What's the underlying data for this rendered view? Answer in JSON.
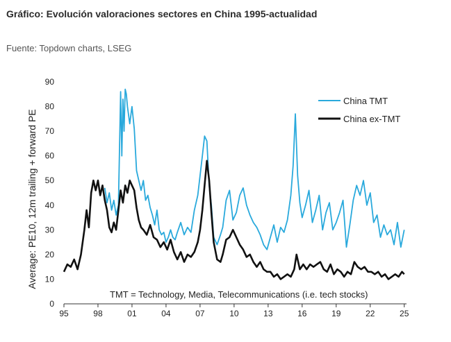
{
  "header": {
    "title": "Gráfico: Evolución valoraciones sectores en China 1995-actualidad",
    "source": "Fuente: Topdown charts, LSEG"
  },
  "chart_data": {
    "type": "line",
    "ylabel": "Average: PE10, 12m trailing + forward PE",
    "ylim": [
      0,
      90
    ],
    "yticks": [
      "0",
      "10",
      "20",
      "30",
      "40",
      "50",
      "60",
      "70",
      "80",
      "90"
    ],
    "xlim": [
      1995,
      2025.2
    ],
    "xticks": [
      {
        "label": "95",
        "x": 1995
      },
      {
        "label": "98",
        "x": 1998
      },
      {
        "label": "01",
        "x": 2001
      },
      {
        "label": "04",
        "x": 2004
      },
      {
        "label": "07",
        "x": 2007
      },
      {
        "label": "10",
        "x": 2010
      },
      {
        "label": "13",
        "x": 2013
      },
      {
        "label": "16",
        "x": 2016
      },
      {
        "label": "19",
        "x": 2019
      },
      {
        "label": "22",
        "x": 2022
      },
      {
        "label": "25",
        "x": 2025
      }
    ],
    "legend_position": "top-right",
    "annotation": "TMT = Technology, Media, Telecommunications  (i.e. tech stocks)",
    "colors": {
      "china_tmt": "#29a9dc",
      "china_ex_tmt": "#111111"
    },
    "series": [
      {
        "name": "China TMT",
        "color": "#29a9dc",
        "x": [
          1998.6,
          1998.8,
          1999.0,
          1999.2,
          1999.4,
          1999.6,
          1999.8,
          2000.0,
          2000.1,
          2000.2,
          2000.3,
          2000.4,
          2000.5,
          2000.6,
          2000.8,
          2001.0,
          2001.2,
          2001.4,
          2001.6,
          2001.8,
          2002.0,
          2002.2,
          2002.4,
          2002.6,
          2002.8,
          2003.0,
          2003.2,
          2003.4,
          2003.6,
          2003.8,
          2004.0,
          2004.2,
          2004.4,
          2004.6,
          2004.8,
          2005.0,
          2005.3,
          2005.6,
          2005.9,
          2006.2,
          2006.5,
          2006.8,
          2007.0,
          2007.2,
          2007.4,
          2007.6,
          2007.8,
          2008.0,
          2008.2,
          2008.5,
          2008.8,
          2009.0,
          2009.3,
          2009.6,
          2009.9,
          2010.2,
          2010.5,
          2010.8,
          2011.1,
          2011.4,
          2011.7,
          2012.0,
          2012.3,
          2012.6,
          2012.9,
          2013.2,
          2013.5,
          2013.8,
          2014.1,
          2014.4,
          2014.7,
          2015.0,
          2015.2,
          2015.4,
          2015.6,
          2015.8,
          2016.0,
          2016.3,
          2016.6,
          2016.9,
          2017.2,
          2017.5,
          2017.8,
          2018.1,
          2018.4,
          2018.7,
          2019.0,
          2019.3,
          2019.6,
          2019.9,
          2020.2,
          2020.5,
          2020.8,
          2021.1,
          2021.4,
          2021.7,
          2022.0,
          2022.3,
          2022.6,
          2022.9,
          2023.2,
          2023.5,
          2023.8,
          2024.1,
          2024.4,
          2024.7,
          2025.0
        ],
        "y": [
          47,
          41,
          45,
          38,
          42,
          36,
          40,
          86,
          60,
          83,
          70,
          87,
          85,
          80,
          73,
          80,
          71,
          54,
          50,
          46,
          50,
          42,
          44,
          39,
          36,
          32,
          38,
          30,
          28,
          29,
          25,
          27,
          30,
          27,
          26,
          29,
          33,
          28,
          31,
          29,
          38,
          44,
          52,
          60,
          68,
          66,
          48,
          40,
          27,
          24,
          28,
          31,
          42,
          46,
          34,
          37,
          44,
          47,
          40,
          36,
          33,
          31,
          28,
          24,
          22,
          27,
          32,
          25,
          31,
          29,
          34,
          44,
          56,
          77,
          52,
          41,
          35,
          40,
          46,
          33,
          38,
          44,
          30,
          37,
          41,
          30,
          33,
          37,
          42,
          23,
          32,
          42,
          48,
          44,
          50,
          40,
          45,
          33,
          36,
          27,
          32,
          28,
          30,
          24,
          33,
          23,
          30
        ]
      },
      {
        "name": "China ex-TMT",
        "color": "#111111",
        "x": [
          1995.0,
          1995.3,
          1995.6,
          1995.9,
          1996.2,
          1996.5,
          1996.8,
          1997.0,
          1997.2,
          1997.4,
          1997.6,
          1997.8,
          1998.0,
          1998.2,
          1998.4,
          1998.6,
          1998.8,
          1999.0,
          1999.2,
          1999.4,
          1999.6,
          1999.8,
          2000.0,
          2000.2,
          2000.4,
          2000.6,
          2000.8,
          2001.0,
          2001.2,
          2001.4,
          2001.6,
          2001.8,
          2002.0,
          2002.3,
          2002.6,
          2002.9,
          2003.2,
          2003.5,
          2003.8,
          2004.1,
          2004.4,
          2004.7,
          2005.0,
          2005.3,
          2005.6,
          2005.9,
          2006.2,
          2006.5,
          2006.8,
          2007.0,
          2007.2,
          2007.4,
          2007.6,
          2007.8,
          2008.0,
          2008.2,
          2008.5,
          2008.8,
          2009.0,
          2009.3,
          2009.6,
          2009.9,
          2010.2,
          2010.5,
          2010.8,
          2011.1,
          2011.4,
          2011.7,
          2012.0,
          2012.3,
          2012.6,
          2012.9,
          2013.2,
          2013.5,
          2013.8,
          2014.1,
          2014.4,
          2014.7,
          2015.0,
          2015.3,
          2015.5,
          2015.8,
          2016.1,
          2016.4,
          2016.7,
          2017.0,
          2017.3,
          2017.6,
          2017.9,
          2018.2,
          2018.5,
          2018.8,
          2019.1,
          2019.4,
          2019.7,
          2020.0,
          2020.3,
          2020.6,
          2020.9,
          2021.2,
          2021.5,
          2021.8,
          2022.1,
          2022.4,
          2022.7,
          2023.0,
          2023.3,
          2023.6,
          2023.9,
          2024.2,
          2024.5,
          2024.8,
          2025.0
        ],
        "y": [
          13,
          16,
          15,
          18,
          14,
          20,
          30,
          38,
          31,
          45,
          50,
          46,
          50,
          44,
          48,
          42,
          38,
          31,
          29,
          33,
          30,
          38,
          46,
          41,
          48,
          45,
          50,
          48,
          46,
          39,
          34,
          31,
          30,
          28,
          32,
          27,
          26,
          23,
          25,
          22,
          26,
          21,
          18,
          21,
          17,
          20,
          19,
          21,
          25,
          30,
          38,
          48,
          58,
          50,
          37,
          25,
          18,
          17,
          20,
          26,
          27,
          30,
          27,
          24,
          22,
          19,
          20,
          17,
          15,
          17,
          14,
          13,
          13,
          11,
          12,
          10,
          11,
          12,
          11,
          14,
          20,
          14,
          16,
          14,
          16,
          15,
          16,
          17,
          14,
          13,
          16,
          12,
          14,
          13,
          11,
          13,
          12,
          17,
          15,
          14,
          15,
          13,
          13,
          12,
          13,
          11,
          12,
          10,
          11,
          12,
          11,
          13,
          12
        ]
      }
    ]
  }
}
